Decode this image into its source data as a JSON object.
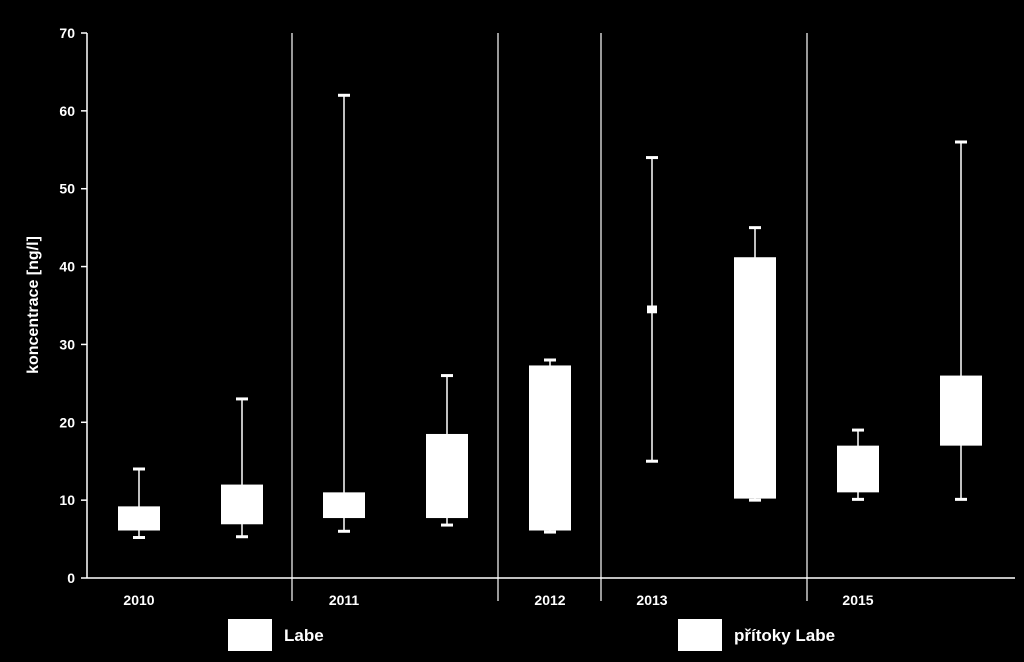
{
  "chart_data": {
    "type": "boxplot",
    "ylabel": "koncentrace [ng/l]",
    "ylim": [
      0,
      70
    ],
    "yticks": [
      0,
      10,
      20,
      30,
      40,
      50,
      60,
      70
    ],
    "groups": [
      "2010",
      "2011",
      "2012",
      "2013",
      "2015"
    ],
    "series": [
      {
        "name": "Labe",
        "color": "#ffffff"
      },
      {
        "name": "přítoky Labe",
        "color": "#ffffff"
      }
    ],
    "boxes": [
      {
        "group": "2010",
        "series": "Labe",
        "min": 5.2,
        "q1": 6.1,
        "q3": 9.2,
        "max": 14
      },
      {
        "group": "2010",
        "series": "přítoky Labe",
        "min": 5.3,
        "q1": 6.9,
        "q3": 12,
        "max": 23
      },
      {
        "group": "2011",
        "series": "Labe",
        "min": 6,
        "q1": 7.7,
        "q3": 11,
        "max": 62
      },
      {
        "group": "2011",
        "series": "přítoky Labe",
        "min": 6.8,
        "q1": 7.7,
        "q3": 18.5,
        "max": 26
      },
      {
        "group": "2012",
        "series": "přítoky Labe",
        "min": 5.9,
        "q1": 6.1,
        "q3": 27.3,
        "max": 28
      },
      {
        "group": "2013",
        "series": "Labe",
        "min": 15,
        "q1": 34,
        "q3": 35,
        "max": 54
      },
      {
        "group": "2013",
        "series": "přítoky Labe",
        "min": 10,
        "q1": 10.2,
        "q3": 41.2,
        "max": 45
      },
      {
        "group": "2015",
        "series": "Labe",
        "min": 10.1,
        "q1": 11,
        "q3": 17,
        "max": 19
      },
      {
        "group": "2015",
        "series": "přítoky Labe",
        "min": 10.1,
        "q1": 17,
        "q3": 26,
        "max": 56
      }
    ]
  }
}
